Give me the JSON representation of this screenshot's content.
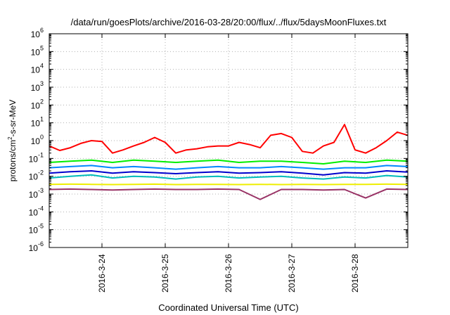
{
  "chart_data": {
    "type": "line",
    "title": "/data/run/goesPlots/archive/2016-03-28/20:00/flux/../flux/5daysMoonFluxes.txt",
    "xlabel": "Coordinated Universal Time (UTC)",
    "ylabel": {
      "prefix": "protons/cm",
      "sup": "2",
      "suffix": "-s-sr-MeV"
    },
    "yscale": "log",
    "ylim_exponent": [
      -6,
      6
    ],
    "y_ticks": [
      {
        "base": "10",
        "exp": "-6"
      },
      {
        "base": "10",
        "exp": "-5"
      },
      {
        "base": "10",
        "exp": "-4"
      },
      {
        "base": "10",
        "exp": "-3"
      },
      {
        "base": "10",
        "exp": "-2"
      },
      {
        "base": "10",
        "exp": "-1"
      },
      {
        "base": "10",
        "exp": "0"
      },
      {
        "base": "10",
        "exp": "1"
      },
      {
        "base": "10",
        "exp": "2"
      },
      {
        "base": "10",
        "exp": "3"
      },
      {
        "base": "10",
        "exp": "4"
      },
      {
        "base": "10",
        "exp": "5"
      },
      {
        "base": "10",
        "exp": "6"
      }
    ],
    "xlim": [
      "2016-03-23 04:00",
      "2016-03-28 20:00"
    ],
    "x_ticks": [
      "2016-3-24",
      "2016-3-25",
      "2016-3-26",
      "2016-3-27",
      "2016-3-28"
    ],
    "grid": true,
    "series": [
      {
        "color": "#ff0000",
        "x": [
          "2016-03-23 04:00",
          "2016-03-23 08:00",
          "2016-03-23 12:00",
          "2016-03-23 16:00",
          "2016-03-23 20:00",
          "2016-03-24 00:00",
          "2016-03-24 04:00",
          "2016-03-24 08:00",
          "2016-03-24 12:00",
          "2016-03-24 16:00",
          "2016-03-24 20:00",
          "2016-03-25 00:00",
          "2016-03-25 04:00",
          "2016-03-25 08:00",
          "2016-03-25 12:00",
          "2016-03-25 16:00",
          "2016-03-25 20:00",
          "2016-03-26 00:00",
          "2016-03-26 04:00",
          "2016-03-26 08:00",
          "2016-03-26 12:00",
          "2016-03-26 16:00",
          "2016-03-26 20:00",
          "2016-03-27 00:00",
          "2016-03-27 04:00",
          "2016-03-27 08:00",
          "2016-03-27 12:00",
          "2016-03-27 16:00",
          "2016-03-27 20:00",
          "2016-03-28 00:00",
          "2016-03-28 04:00",
          "2016-03-28 08:00",
          "2016-03-28 12:00",
          "2016-03-28 16:00",
          "2016-03-28 20:00"
        ],
        "y": [
          0.5,
          0.28,
          0.4,
          0.7,
          1.0,
          0.9,
          0.2,
          0.3,
          0.5,
          0.8,
          1.5,
          0.8,
          0.2,
          0.3,
          0.35,
          0.45,
          0.5,
          0.5,
          0.8,
          0.6,
          0.4,
          2.0,
          2.5,
          1.5,
          0.25,
          0.2,
          0.5,
          0.8,
          8.0,
          0.3,
          0.2,
          0.4,
          1.0,
          3.0,
          2.0
        ]
      },
      {
        "color": "#00ee00",
        "x": [
          "2016-03-23 04:00",
          "2016-03-23 12:00",
          "2016-03-23 20:00",
          "2016-03-24 04:00",
          "2016-03-24 12:00",
          "2016-03-24 20:00",
          "2016-03-25 04:00",
          "2016-03-25 12:00",
          "2016-03-25 20:00",
          "2016-03-26 04:00",
          "2016-03-26 12:00",
          "2016-03-26 20:00",
          "2016-03-27 04:00",
          "2016-03-27 12:00",
          "2016-03-27 20:00",
          "2016-03-28 04:00",
          "2016-03-28 12:00",
          "2016-03-28 20:00"
        ],
        "y": [
          0.06,
          0.07,
          0.08,
          0.06,
          0.08,
          0.07,
          0.06,
          0.07,
          0.08,
          0.06,
          0.07,
          0.07,
          0.06,
          0.05,
          0.07,
          0.06,
          0.08,
          0.07
        ]
      },
      {
        "color": "#0088ff",
        "x": [
          "2016-03-23 04:00",
          "2016-03-23 12:00",
          "2016-03-23 20:00",
          "2016-03-24 04:00",
          "2016-03-24 12:00",
          "2016-03-24 20:00",
          "2016-03-25 04:00",
          "2016-03-25 12:00",
          "2016-03-25 20:00",
          "2016-03-26 04:00",
          "2016-03-26 12:00",
          "2016-03-26 20:00",
          "2016-03-27 04:00",
          "2016-03-27 12:00",
          "2016-03-27 20:00",
          "2016-03-28 04:00",
          "2016-03-28 12:00",
          "2016-03-28 20:00"
        ],
        "y": [
          0.03,
          0.035,
          0.04,
          0.03,
          0.035,
          0.03,
          0.025,
          0.03,
          0.035,
          0.03,
          0.03,
          0.035,
          0.03,
          0.025,
          0.03,
          0.03,
          0.04,
          0.035
        ]
      },
      {
        "color": "#0000cc",
        "x": [
          "2016-03-23 04:00",
          "2016-03-23 12:00",
          "2016-03-23 20:00",
          "2016-03-24 04:00",
          "2016-03-24 12:00",
          "2016-03-24 20:00",
          "2016-03-25 04:00",
          "2016-03-25 12:00",
          "2016-03-25 20:00",
          "2016-03-26 04:00",
          "2016-03-26 12:00",
          "2016-03-26 20:00",
          "2016-03-27 04:00",
          "2016-03-27 12:00",
          "2016-03-27 20:00",
          "2016-03-28 04:00",
          "2016-03-28 12:00",
          "2016-03-28 20:00"
        ],
        "y": [
          0.015,
          0.018,
          0.02,
          0.015,
          0.018,
          0.016,
          0.014,
          0.016,
          0.018,
          0.015,
          0.016,
          0.018,
          0.015,
          0.012,
          0.016,
          0.015,
          0.02,
          0.017
        ]
      },
      {
        "color": "#00bbbb",
        "x": [
          "2016-03-23 04:00",
          "2016-03-23 12:00",
          "2016-03-23 20:00",
          "2016-03-24 04:00",
          "2016-03-24 12:00",
          "2016-03-24 20:00",
          "2016-03-25 04:00",
          "2016-03-25 12:00",
          "2016-03-25 20:00",
          "2016-03-26 04:00",
          "2016-03-26 12:00",
          "2016-03-26 20:00",
          "2016-03-27 04:00",
          "2016-03-27 12:00",
          "2016-03-27 20:00",
          "2016-03-28 04:00",
          "2016-03-28 12:00",
          "2016-03-28 20:00"
        ],
        "y": [
          0.008,
          0.01,
          0.012,
          0.008,
          0.01,
          0.009,
          0.007,
          0.009,
          0.01,
          0.008,
          0.009,
          0.01,
          0.008,
          0.007,
          0.009,
          0.008,
          0.011,
          0.009
        ]
      },
      {
        "color": "#eeee00",
        "x": [
          "2016-03-23 04:00",
          "2016-03-23 12:00",
          "2016-03-23 20:00",
          "2016-03-24 04:00",
          "2016-03-24 12:00",
          "2016-03-24 20:00",
          "2016-03-25 04:00",
          "2016-03-25 12:00",
          "2016-03-25 20:00",
          "2016-03-26 04:00",
          "2016-03-26 12:00",
          "2016-03-26 20:00",
          "2016-03-27 04:00",
          "2016-03-27 12:00",
          "2016-03-27 20:00",
          "2016-03-28 04:00",
          "2016-03-28 12:00",
          "2016-03-28 20:00"
        ],
        "y": [
          0.0035,
          0.0036,
          0.0035,
          0.0034,
          0.0035,
          0.0036,
          0.0034,
          0.0035,
          0.0035,
          0.0034,
          0.0035,
          0.0034,
          0.0035,
          0.0034,
          0.0035,
          0.0035,
          0.0036,
          0.0035
        ]
      },
      {
        "color": "#993366",
        "x": [
          "2016-03-23 04:00",
          "2016-03-23 12:00",
          "2016-03-23 20:00",
          "2016-03-24 04:00",
          "2016-03-24 12:00",
          "2016-03-24 20:00",
          "2016-03-25 04:00",
          "2016-03-25 12:00",
          "2016-03-25 20:00",
          "2016-03-26 04:00",
          "2016-03-26 12:00",
          "2016-03-26 20:00",
          "2016-03-27 04:00",
          "2016-03-27 12:00",
          "2016-03-27 20:00",
          "2016-03-28 04:00",
          "2016-03-28 12:00",
          "2016-03-28 20:00"
        ],
        "y": [
          0.0018,
          0.0019,
          0.0018,
          0.0017,
          0.0018,
          0.0019,
          0.0018,
          0.0018,
          0.0019,
          0.0018,
          0.0005,
          0.0018,
          0.0018,
          0.0017,
          0.0018,
          0.0006,
          0.0019,
          0.0018
        ]
      }
    ]
  }
}
